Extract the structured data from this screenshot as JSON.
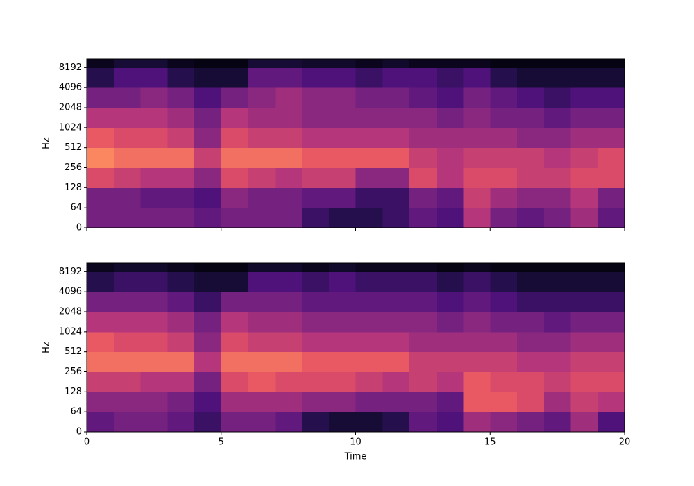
{
  "chart_data": [
    {
      "type": "heatmap",
      "colormap": "magma",
      "ylabel": "Hz",
      "yscale": "symlog",
      "linthresh": 64,
      "ylim": [
        0,
        11025
      ],
      "yticks": [
        0,
        64,
        128,
        256,
        512,
        1024,
        2048,
        4096,
        8192
      ],
      "xlim": [
        0,
        20
      ],
      "xticks": [
        0,
        5,
        10,
        15,
        20
      ],
      "show_xticklabels": false,
      "z": [
        [
          0.35,
          0.35,
          0.35,
          0.35,
          0.3,
          0.35,
          0.35,
          0.35,
          0.2,
          0.15,
          0.15,
          0.2,
          0.3,
          0.25,
          0.5,
          0.35,
          0.3,
          0.35,
          0.45,
          0.3
        ],
        [
          0.35,
          0.35,
          0.3,
          0.3,
          0.25,
          0.4,
          0.35,
          0.35,
          0.3,
          0.3,
          0.2,
          0.2,
          0.35,
          0.3,
          0.55,
          0.45,
          0.4,
          0.4,
          0.5,
          0.35
        ],
        [
          0.6,
          0.55,
          0.5,
          0.5,
          0.4,
          0.6,
          0.55,
          0.5,
          0.55,
          0.55,
          0.4,
          0.4,
          0.6,
          0.5,
          0.6,
          0.6,
          0.55,
          0.55,
          0.6,
          0.6
        ],
        [
          0.75,
          0.7,
          0.7,
          0.7,
          0.55,
          0.7,
          0.7,
          0.7,
          0.65,
          0.65,
          0.65,
          0.65,
          0.55,
          0.5,
          0.55,
          0.55,
          0.55,
          0.5,
          0.55,
          0.6
        ],
        [
          0.65,
          0.6,
          0.6,
          0.55,
          0.4,
          0.6,
          0.55,
          0.55,
          0.5,
          0.5,
          0.5,
          0.5,
          0.45,
          0.45,
          0.45,
          0.45,
          0.4,
          0.4,
          0.45,
          0.45
        ],
        [
          0.5,
          0.5,
          0.5,
          0.45,
          0.35,
          0.5,
          0.45,
          0.45,
          0.4,
          0.4,
          0.4,
          0.4,
          0.4,
          0.35,
          0.4,
          0.35,
          0.35,
          0.3,
          0.35,
          0.35
        ],
        [
          0.35,
          0.35,
          0.4,
          0.35,
          0.25,
          0.35,
          0.4,
          0.45,
          0.4,
          0.4,
          0.35,
          0.35,
          0.3,
          0.25,
          0.35,
          0.3,
          0.25,
          0.2,
          0.25,
          0.25
        ],
        [
          0.15,
          0.25,
          0.25,
          0.15,
          0.1,
          0.1,
          0.3,
          0.3,
          0.25,
          0.25,
          0.2,
          0.25,
          0.25,
          0.2,
          0.25,
          0.15,
          0.1,
          0.1,
          0.1,
          0.1
        ],
        [
          0.05,
          0.1,
          0.1,
          0.05,
          0.03,
          0.03,
          0.1,
          0.1,
          0.08,
          0.08,
          0.05,
          0.08,
          0.05,
          0.05,
          0.05,
          0.03,
          0.03,
          0.03,
          0.03,
          0.03
        ]
      ]
    },
    {
      "type": "heatmap",
      "colormap": "magma",
      "ylabel": "Hz",
      "xlabel": "Time",
      "yscale": "symlog",
      "linthresh": 64,
      "ylim": [
        0,
        11025
      ],
      "yticks": [
        0,
        64,
        128,
        256,
        512,
        1024,
        2048,
        4096,
        8192
      ],
      "xlim": [
        0,
        20
      ],
      "xticks": [
        0,
        5,
        10,
        15,
        20
      ],
      "show_xticklabels": true,
      "z": [
        [
          0.3,
          0.35,
          0.35,
          0.3,
          0.2,
          0.35,
          0.35,
          0.3,
          0.15,
          0.1,
          0.1,
          0.15,
          0.3,
          0.25,
          0.45,
          0.4,
          0.35,
          0.3,
          0.45,
          0.25
        ],
        [
          0.4,
          0.4,
          0.4,
          0.35,
          0.25,
          0.45,
          0.45,
          0.45,
          0.4,
          0.4,
          0.35,
          0.35,
          0.35,
          0.3,
          0.65,
          0.65,
          0.6,
          0.45,
          0.55,
          0.5
        ],
        [
          0.55,
          0.55,
          0.5,
          0.5,
          0.35,
          0.6,
          0.65,
          0.6,
          0.6,
          0.6,
          0.55,
          0.5,
          0.55,
          0.5,
          0.65,
          0.6,
          0.6,
          0.55,
          0.6,
          0.6
        ],
        [
          0.7,
          0.7,
          0.7,
          0.7,
          0.5,
          0.7,
          0.7,
          0.7,
          0.65,
          0.65,
          0.65,
          0.65,
          0.55,
          0.55,
          0.55,
          0.55,
          0.5,
          0.5,
          0.55,
          0.55
        ],
        [
          0.65,
          0.6,
          0.6,
          0.55,
          0.4,
          0.6,
          0.55,
          0.55,
          0.5,
          0.5,
          0.5,
          0.5,
          0.45,
          0.45,
          0.45,
          0.45,
          0.4,
          0.4,
          0.45,
          0.45
        ],
        [
          0.5,
          0.5,
          0.5,
          0.45,
          0.35,
          0.5,
          0.45,
          0.45,
          0.4,
          0.4,
          0.4,
          0.4,
          0.4,
          0.35,
          0.4,
          0.35,
          0.35,
          0.3,
          0.35,
          0.35
        ],
        [
          0.35,
          0.35,
          0.35,
          0.3,
          0.2,
          0.35,
          0.35,
          0.35,
          0.3,
          0.3,
          0.3,
          0.3,
          0.3,
          0.25,
          0.3,
          0.25,
          0.2,
          0.2,
          0.2,
          0.2
        ],
        [
          0.15,
          0.2,
          0.2,
          0.15,
          0.1,
          0.1,
          0.25,
          0.25,
          0.2,
          0.25,
          0.2,
          0.2,
          0.2,
          0.15,
          0.2,
          0.15,
          0.1,
          0.1,
          0.1,
          0.1
        ],
        [
          0.05,
          0.08,
          0.08,
          0.05,
          0.03,
          0.03,
          0.08,
          0.08,
          0.05,
          0.08,
          0.05,
          0.05,
          0.05,
          0.03,
          0.05,
          0.03,
          0.03,
          0.03,
          0.03,
          0.03
        ]
      ]
    }
  ]
}
